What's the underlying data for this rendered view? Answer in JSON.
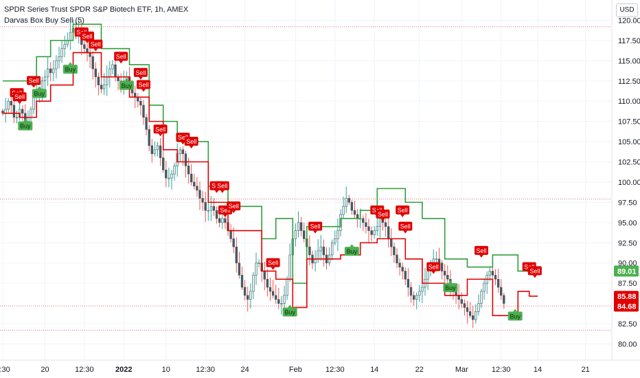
{
  "header": {
    "title": "SPDR Series Trust SPDR S&P Biotech ETF, 1h, AMEX",
    "indicator": "Darvas Box Buy Sell (5)"
  },
  "currency_button": "USD",
  "colors": {
    "up_candle": "#26a69a",
    "down_candle": "#ef5350",
    "candle_body": "#455a64",
    "top_line": "#2e9e3a",
    "bottom_line": "#e00000",
    "buy_label": "#4caf50",
    "sell_label": "#e00000"
  },
  "chart_data": {
    "type": "candlestick",
    "title": "SPDR Series Trust SPDR S&P Biotech ETF, 1h, AMEX",
    "indicator": "Darvas Box Buy Sell (5)",
    "ylim": [
      78,
      122.5
    ],
    "y_ticks": [
      "120.00",
      "117.50",
      "115.00",
      "112.50",
      "110.00",
      "107.50",
      "105.00",
      "102.50",
      "100.00",
      "97.50",
      "95.00",
      "92.50",
      "90.00",
      "87.50",
      "82.50",
      "80.00"
    ],
    "x_ticks": [
      {
        "label": "2:30",
        "i": 0
      },
      {
        "label": "20",
        "i": 15
      },
      {
        "label": "12:30",
        "i": 29
      },
      {
        "label": "2022",
        "i": 43,
        "bold": true
      },
      {
        "label": "10",
        "i": 58
      },
      {
        "label": "12:30",
        "i": 72
      },
      {
        "label": "24",
        "i": 86
      },
      {
        "label": "Feb",
        "i": 104
      },
      {
        "label": "12:30",
        "i": 118
      },
      {
        "label": "14",
        "i": 132
      },
      {
        "label": "22",
        "i": 148
      },
      {
        "label": "Mar",
        "i": 163
      },
      {
        "label": "12:30",
        "i": 177
      },
      {
        "label": "14",
        "i": 190
      },
      {
        "label": "21",
        "i": 207
      }
    ],
    "grid": true,
    "last_price": 84.68,
    "price_labels": [
      {
        "value": 89.01,
        "text": "89.01",
        "color": "#4caf50"
      },
      {
        "value": 85.88,
        "text": "85.88",
        "color": "#e00000"
      },
      {
        "value": 84.68,
        "text": "84.68",
        "color": "#e00000"
      }
    ],
    "reference_lines": [
      119.2,
      97.9,
      84.7,
      81.7
    ],
    "close": [
      108.5,
      109,
      110,
      109.5,
      108,
      108,
      109,
      108.5,
      107.5,
      108,
      109,
      110.5,
      111,
      111.5,
      112.5,
      113,
      114,
      113.5,
      114,
      115,
      115.5,
      116.5,
      117,
      117.5,
      118.5,
      119,
      118,
      118.5,
      117,
      116.5,
      116,
      115.5,
      114,
      113,
      112,
      111.5,
      112,
      113,
      114,
      114.5,
      113,
      112.5,
      112,
      112.5,
      113,
      112,
      111,
      110.5,
      110,
      109.5,
      108,
      106.5,
      104.5,
      103.5,
      104,
      104.5,
      103,
      101.5,
      100.5,
      100.5,
      101,
      102,
      103.5,
      104,
      103.5,
      102,
      101,
      100,
      99.5,
      99,
      98,
      97.5,
      96.5,
      96.5,
      97,
      96.5,
      95.5,
      95,
      95.5,
      95,
      94,
      93,
      92,
      90,
      88.5,
      87,
      86,
      85.5,
      86.5,
      88.5,
      90,
      90,
      89,
      88,
      87,
      86.5,
      86,
      85.5,
      85,
      85,
      86,
      88,
      91,
      93,
      94,
      95,
      94,
      93,
      92,
      91,
      90,
      90.5,
      91.5,
      92,
      91,
      90,
      91,
      92.5,
      93,
      94,
      96,
      97,
      98,
      97.5,
      96.5,
      96,
      95.5,
      95.5,
      95,
      94.5,
      94,
      93.5,
      94,
      94.5,
      95.5,
      95,
      94.5,
      93,
      92,
      91,
      90,
      89.5,
      89,
      88,
      87,
      86,
      85.5,
      86,
      86.5,
      87,
      88,
      89,
      90,
      90.5,
      90.5,
      90,
      89,
      88.5,
      88,
      87,
      86.5,
      86,
      85.5,
      85,
      84.5,
      84,
      83.5,
      83,
      84,
      85,
      86.5,
      87.5,
      88.5,
      89,
      88.5,
      88,
      87,
      86,
      85
    ],
    "darvas_top": [
      {
        "i0": 0,
        "i1": 12,
        "v": 112.5
      },
      {
        "i0": 12,
        "i1": 17,
        "v": 115.5
      },
      {
        "i0": 17,
        "i1": 25,
        "v": 117.5
      },
      {
        "i0": 25,
        "i1": 35,
        "v": 119.5
      },
      {
        "i0": 35,
        "i1": 45,
        "v": 116.5
      },
      {
        "i0": 45,
        "i1": 52,
        "v": 114.5
      },
      {
        "i0": 52,
        "i1": 57,
        "v": 109.5
      },
      {
        "i0": 57,
        "i1": 62,
        "v": 107.5
      },
      {
        "i0": 62,
        "i1": 73,
        "v": 105
      },
      {
        "i0": 73,
        "i1": 80,
        "v": 99.5
      },
      {
        "i0": 80,
        "i1": 92,
        "v": 97
      },
      {
        "i0": 92,
        "i1": 97,
        "v": 93
      },
      {
        "i0": 97,
        "i1": 103,
        "v": 95.5
      },
      {
        "i0": 103,
        "i1": 108,
        "v": 87.5
      },
      {
        "i0": 108,
        "i1": 120,
        "v": 94.5
      },
      {
        "i0": 120,
        "i1": 127,
        "v": 95.5
      },
      {
        "i0": 127,
        "i1": 133,
        "v": 96.5
      },
      {
        "i0": 133,
        "i1": 143,
        "v": 99.2
      },
      {
        "i0": 143,
        "i1": 149,
        "v": 97.5
      },
      {
        "i0": 149,
        "i1": 157,
        "v": 95.5
      },
      {
        "i0": 157,
        "i1": 165,
        "v": 90.5
      },
      {
        "i0": 165,
        "i1": 174,
        "v": 89.5
      },
      {
        "i0": 174,
        "i1": 183,
        "v": 91
      },
      {
        "i0": 183,
        "i1": 190,
        "v": 89
      }
    ],
    "darvas_bottom": [
      {
        "i0": 0,
        "i1": 6,
        "v": 108.5
      },
      {
        "i0": 6,
        "i1": 12,
        "v": 108
      },
      {
        "i0": 12,
        "i1": 17,
        "v": 110
      },
      {
        "i0": 17,
        "i1": 25,
        "v": 112
      },
      {
        "i0": 25,
        "i1": 35,
        "v": 116
      },
      {
        "i0": 35,
        "i1": 45,
        "v": 113
      },
      {
        "i0": 45,
        "i1": 52,
        "v": 110.5
      },
      {
        "i0": 52,
        "i1": 57,
        "v": 107.5
      },
      {
        "i0": 57,
        "i1": 62,
        "v": 104
      },
      {
        "i0": 62,
        "i1": 73,
        "v": 102.5
      },
      {
        "i0": 73,
        "i1": 80,
        "v": 97.5
      },
      {
        "i0": 80,
        "i1": 92,
        "v": 94
      },
      {
        "i0": 92,
        "i1": 97,
        "v": 89
      },
      {
        "i0": 97,
        "i1": 103,
        "v": 88
      },
      {
        "i0": 103,
        "i1": 108,
        "v": 84.5
      },
      {
        "i0": 108,
        "i1": 120,
        "v": 90.5
      },
      {
        "i0": 120,
        "i1": 127,
        "v": 91
      },
      {
        "i0": 127,
        "i1": 133,
        "v": 92.5
      },
      {
        "i0": 133,
        "i1": 143,
        "v": 93
      },
      {
        "i0": 143,
        "i1": 149,
        "v": 90.5
      },
      {
        "i0": 149,
        "i1": 157,
        "v": 87.5
      },
      {
        "i0": 157,
        "i1": 165,
        "v": 86
      },
      {
        "i0": 165,
        "i1": 174,
        "v": 88
      },
      {
        "i0": 174,
        "i1": 183,
        "v": 83.5
      },
      {
        "i0": 183,
        "i1": 187,
        "v": 86.5
      },
      {
        "i0": 187,
        "i1": 190,
        "v": 85.9
      }
    ],
    "signals": [
      {
        "type": "Sell",
        "i": 5,
        "v": 110.5
      },
      {
        "type": "Sell",
        "i": 6,
        "v": 110
      },
      {
        "type": "Buy",
        "i": 8,
        "v": 107.5
      },
      {
        "type": "Sell",
        "i": 11,
        "v": 112
      },
      {
        "type": "Buy",
        "i": 13,
        "v": 111.5
      },
      {
        "type": "Buy",
        "i": 24,
        "v": 114.5
      },
      {
        "type": "Sell",
        "i": 28,
        "v": 118
      },
      {
        "type": "Sell",
        "i": 30,
        "v": 117.5
      },
      {
        "type": "Sell",
        "i": 33,
        "v": 116.5
      },
      {
        "type": "Sell",
        "i": 42,
        "v": 115
      },
      {
        "type": "Buy",
        "i": 44,
        "v": 112.5
      },
      {
        "type": "Sell",
        "i": 49,
        "v": 113
      },
      {
        "type": "Sell",
        "i": 50,
        "v": 111.5
      },
      {
        "type": "Sell",
        "i": 56,
        "v": 106
      },
      {
        "type": "Sell",
        "i": 64,
        "v": 105
      },
      {
        "type": "Sell",
        "i": 67,
        "v": 104.5
      },
      {
        "type": "Sell",
        "i": 76,
        "v": 99
      },
      {
        "type": "Sell",
        "i": 78,
        "v": 99
      },
      {
        "type": "Sell",
        "i": 79,
        "v": 96
      },
      {
        "type": "Sell",
        "i": 82,
        "v": 96.5
      },
      {
        "type": "Sell",
        "i": 96,
        "v": 89.5
      },
      {
        "type": "Buy",
        "i": 102,
        "v": 84.5
      },
      {
        "type": "Sell",
        "i": 111,
        "v": 94
      },
      {
        "type": "Buy",
        "i": 124,
        "v": 92
      },
      {
        "type": "Sell",
        "i": 133,
        "v": 96
      },
      {
        "type": "Sell",
        "i": 135,
        "v": 95.5
      },
      {
        "type": "Sell",
        "i": 142,
        "v": 96
      },
      {
        "type": "Sell",
        "i": 143,
        "v": 94
      },
      {
        "type": "Sell",
        "i": 153,
        "v": 89
      },
      {
        "type": "Buy",
        "i": 159,
        "v": 87.5
      },
      {
        "type": "Sell",
        "i": 170,
        "v": 91
      },
      {
        "type": "Buy",
        "i": 182,
        "v": 84
      },
      {
        "type": "Sell",
        "i": 187,
        "v": 89
      },
      {
        "type": "Sell",
        "i": 189,
        "v": 88.5
      }
    ]
  }
}
